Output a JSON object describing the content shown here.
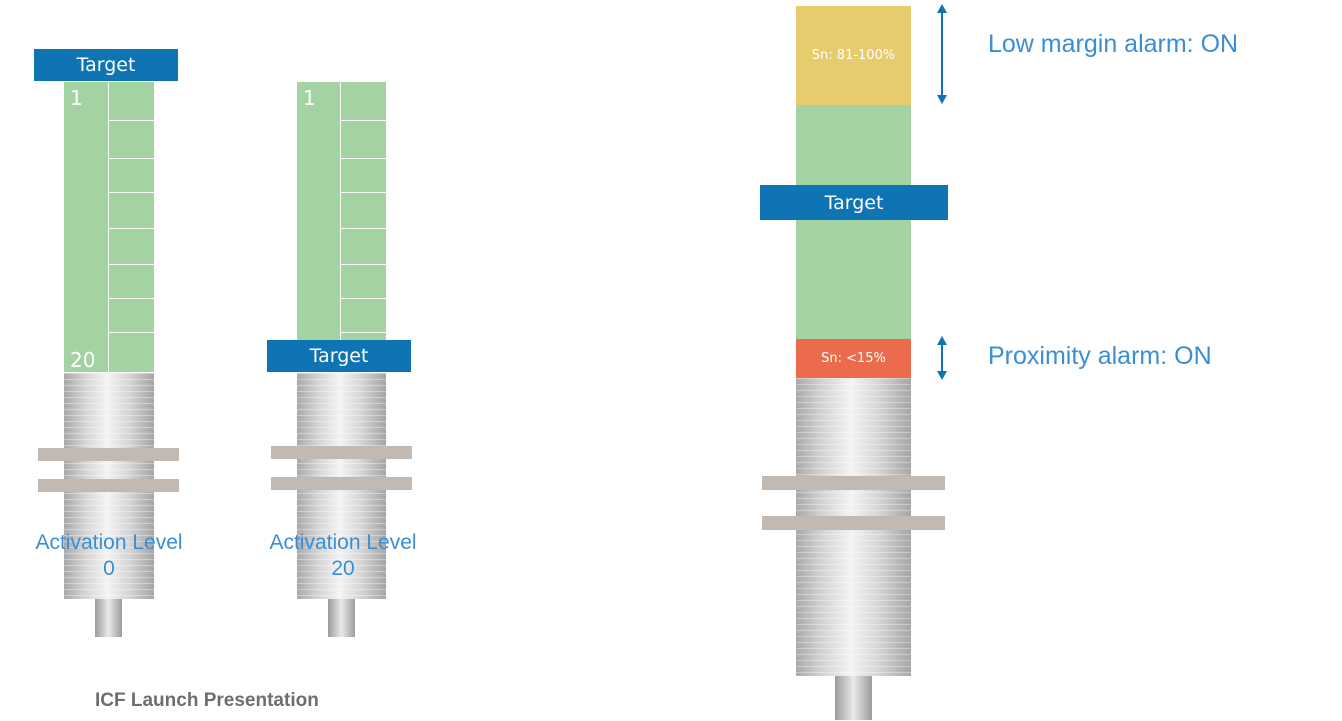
{
  "sensor_1": {
    "target_label": "Target",
    "scale_top": "1",
    "scale_bottom": "20",
    "activation_label": "Activation Level",
    "activation_value": "0"
  },
  "sensor_2": {
    "target_label": "Target",
    "scale_top": "1",
    "activation_label": "Activation Level",
    "activation_value": "20"
  },
  "sensor_3": {
    "target_label": "Target",
    "upper_zone_label": "Sn: 81-100%",
    "lower_zone_label": "Sn: <15%",
    "low_margin_alarm": "Low margin alarm:  ON",
    "proximity_alarm": "Proximity alarm:  ON"
  },
  "footer": "ICF Launch Presentation",
  "colors": {
    "target_blue": "#0f74b3",
    "scale_green": "#a3d3a3",
    "warning_yellow": "#e6cc6c",
    "alarm_red": "#ec6b4c",
    "label_blue": "#3a8ed3"
  }
}
